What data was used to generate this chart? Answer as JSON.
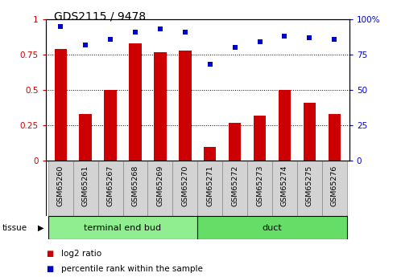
{
  "title": "GDS2115 / 9478",
  "categories": [
    "GSM65260",
    "GSM65261",
    "GSM65267",
    "GSM65268",
    "GSM65269",
    "GSM65270",
    "GSM65271",
    "GSM65272",
    "GSM65273",
    "GSM65274",
    "GSM65275",
    "GSM65276"
  ],
  "log2_ratio": [
    0.79,
    0.33,
    0.5,
    0.83,
    0.77,
    0.78,
    0.1,
    0.27,
    0.32,
    0.5,
    0.41,
    0.33
  ],
  "percentile_rank": [
    95,
    82,
    86,
    91,
    93,
    91,
    68,
    80,
    84,
    88,
    87,
    86
  ],
  "bar_color": "#cc0000",
  "dot_color": "#0000cc",
  "ylim_left": [
    0,
    1.0
  ],
  "ylim_right": [
    0,
    100
  ],
  "yticks_left": [
    0,
    0.25,
    0.5,
    0.75,
    1.0
  ],
  "ytick_labels_left": [
    "0",
    "0.25",
    "0.5",
    "0.75",
    "1"
  ],
  "yticks_right": [
    0,
    25,
    50,
    75,
    100
  ],
  "ytick_labels_right": [
    "0",
    "25",
    "50",
    "75",
    "100%"
  ],
  "groups": [
    {
      "label": "terminal end bud",
      "start": 0,
      "end": 6,
      "color": "#90ee90"
    },
    {
      "label": "duct",
      "start": 6,
      "end": 12,
      "color": "#66dd66"
    }
  ],
  "tissue_label": "tissue",
  "legend_items": [
    {
      "label": "log2 ratio",
      "color": "#cc0000"
    },
    {
      "label": "percentile rank within the sample",
      "color": "#0000cc"
    }
  ],
  "bar_width": 0.5,
  "bg_color": "#ffffff",
  "xticklabel_bgcolor": "#d3d3d3",
  "xticklabel_edgecolor": "#aaaaaa"
}
